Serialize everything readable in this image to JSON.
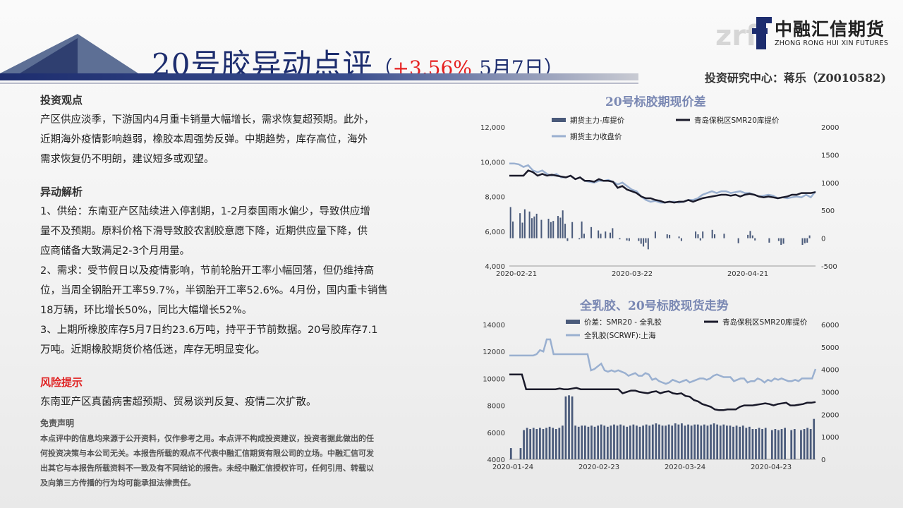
{
  "header": {
    "title": "20号胶异动点评",
    "paren_open": "（",
    "pct": "+3.56%",
    "date": "5月7日",
    "paren_close": "）",
    "author": "投资研究中心：蒋乐（Z0010582)"
  },
  "logo": {
    "cn": "中融汇信期货",
    "en": "ZHONG RONG HUI XIN FUTURES",
    "watermark": "zrf"
  },
  "colors": {
    "navy": "#1d2d6e",
    "red": "#e52020",
    "bar": "#4a5a7a",
    "line_dark": "#1a1a2a",
    "line_light": "#9ab0d0"
  },
  "view": {
    "heading": "投资观点",
    "lines": [
      "产区供应淡季，下游国内4月重卡销量大幅增长，需求恢复超预期。此外，",
      "近期海外疫情影响趋弱，橡胶本周强势反弹。中期趋势，库存高位，海外",
      "需求恢复仍不明朗，建议短多或观望。"
    ]
  },
  "analysis": {
    "heading": "异动解析",
    "lines": [
      "1、供给：东南亚产区陆续进入停割期，1-2月泰国雨水偏少，导致供应增",
      "量不及预期。原料价格下滑导致胶农割胶意愿下降，近期供应量下降，供",
      "应商储备大致满足2-3个月用量。",
      "2、需求：受节假日以及疫情影响，节前轮胎开工率小幅回落，但仍维持高",
      "位，当周全钢胎开工率59.7%，半钢胎开工率52.6%。4月份，国内重卡销售",
      "18万辆，环比增长50%，同比大幅增长52%。",
      "3、上期所橡胶库存5月7日约23.6万吨，持平于节前数据。20号胶库存7.1",
      "万吨。近期橡胶期货价格低迷，库存无明显变化。"
    ]
  },
  "risk": {
    "heading": "风险提示",
    "text": "东南亚产区真菌病害超预期、贸易谈判反复、疫情二次扩散。"
  },
  "disclaimer": {
    "heading": "免责声明",
    "lines": [
      "本点评中的信息均来源于公开资料，仅作参考之用。本点评不构成投资建议，投资者据此做出的任",
      "何投资决策与本公司无关。本报告所载的观点不代表中融汇信期货有限公司的立场。中融汇信可发",
      "出其它与本报告所载资料不一致及有不同结论的报告。未经中融汇信授权许可，任何引用、转载以",
      "及向第三方传播的行为均可能承担法律责任。"
    ]
  },
  "chart_data": [
    {
      "type": "bar+line",
      "title": "20号标胶期现价差",
      "left_ylim": [
        4000,
        12000
      ],
      "left_ticks": [
        "12,000",
        "10,000",
        "8,000",
        "6,000",
        "4,000"
      ],
      "right_ylim": [
        -500,
        2000
      ],
      "right_ticks": [
        "2000",
        "1500",
        "1000",
        "500",
        "0",
        "-500"
      ],
      "x_ticks": [
        "2020-02-21",
        "2020-03-22",
        "2020-04-21"
      ],
      "legend": [
        "期货主力-库提价",
        "青岛保税区SMR20库提价",
        "期货主力收盘价"
      ],
      "bars": [
        560,
        300,
        0,
        0,
        450,
        280,
        520,
        0,
        480,
        360,
        390,
        440,
        0,
        330,
        0,
        0,
        350,
        290,
        310,
        0,
        400,
        370,
        500,
        260,
        -50,
        0,
        290,
        0,
        0,
        -20,
        300,
        80,
        0,
        0,
        200,
        0,
        0,
        140,
        80,
        0,
        120,
        0,
        100,
        180,
        0,
        0,
        -20,
        0,
        0,
        -40,
        -50,
        0,
        0,
        0,
        -50,
        -100,
        -150,
        -80,
        -200,
        0,
        0,
        120,
        0,
        0,
        0,
        0,
        70,
        60,
        0,
        0,
        0,
        30,
        -50,
        0,
        0,
        0,
        0,
        0,
        120,
        70,
        -40,
        120,
        0,
        0,
        0,
        150,
        70,
        0,
        0,
        0,
        80,
        0,
        0,
        0,
        0,
        0,
        -90,
        0,
        0,
        0,
        60,
        130,
        50,
        -40,
        0,
        0,
        0,
        0,
        0,
        -80,
        0,
        0,
        0,
        -50,
        -120,
        -100,
        0,
        0,
        0,
        0,
        0,
        0,
        0,
        -120,
        -90,
        -80,
        50,
        0,
        0
      ],
      "series_dark": [
        9200,
        9200,
        9200,
        9200,
        9500,
        9400,
        9200,
        9300,
        9200,
        9250,
        9200,
        9150,
        9100,
        9200,
        9000,
        9100,
        8900,
        8900,
        8850,
        9000,
        8900,
        8900,
        8850,
        8500,
        8600,
        8400,
        8300,
        8200,
        8000,
        7900,
        7900,
        7800,
        7750,
        7650,
        7700,
        7650,
        7700,
        7700,
        7800,
        7700,
        7800,
        7900,
        7950,
        8000,
        8050,
        8100,
        8100,
        8050,
        8100,
        8000,
        8100,
        8150,
        8100,
        8000,
        7950,
        8000,
        7950,
        7900,
        7950,
        8000,
        8100,
        8100,
        8200,
        8200,
        8200,
        8250
      ],
      "series_light": [
        9900,
        9900,
        9850,
        9700,
        9800,
        9500,
        9400,
        9500,
        9300,
        9200,
        9300,
        9100,
        9100,
        9200,
        9000,
        9100,
        8900,
        8850,
        8800,
        8900,
        8900,
        8950,
        8850,
        8700,
        8800,
        8600,
        8400,
        8300,
        8000,
        7800,
        7700,
        7750,
        7650,
        7650,
        7700,
        7700,
        7650,
        7700,
        7800,
        7800,
        7900,
        8100,
        8200,
        8300,
        8200,
        8300,
        8300,
        8200,
        8250,
        8300,
        8200,
        8200,
        8100,
        8000,
        8050,
        8100,
        8050,
        7900,
        7950,
        7900,
        7950,
        8000,
        7950,
        8100,
        7950,
        8300
      ]
    },
    {
      "type": "bar+line",
      "title": "全乳胶、20号标胶现货走势",
      "left_ylim": [
        4000,
        14000
      ],
      "left_ticks": [
        "14000",
        "12000",
        "10000",
        "8000",
        "6000",
        "4000"
      ],
      "right_ylim": [
        0,
        6000
      ],
      "right_ticks": [
        "6000",
        "5000",
        "4000",
        "3000",
        "2000",
        "1000",
        "0"
      ],
      "x_ticks": [
        "2020-01-24",
        "2020-02-23",
        "2020-03-24",
        "2020-04-23"
      ],
      "legend": [
        "价差：SMR20 - 全乳胶",
        "青岛保税区SMR20库提价",
        "全乳胶(SCRWF):上海"
      ],
      "bars": [
        500,
        0,
        0,
        500,
        1300,
        1400,
        1350,
        1400,
        1350,
        1400,
        1350,
        1400,
        1450,
        1400,
        1350,
        1400,
        1500,
        2800,
        2850,
        2800,
        1500,
        1450,
        1500,
        1500,
        1450,
        1500,
        1450,
        1500,
        1550,
        1500,
        1450,
        1500,
        1550,
        1500,
        1550,
        1500,
        1450,
        1500,
        1550,
        1500,
        1450,
        1500,
        1550,
        1500,
        1550,
        1600,
        1550,
        1500,
        1500,
        1550,
        1500,
        1600,
        1550,
        1600,
        1500,
        1550,
        1500,
        1550,
        1550,
        1500,
        1550,
        1500,
        1550,
        1600,
        1550,
        1500,
        1550,
        1500,
        1500,
        1450,
        1500,
        1450,
        1500,
        1400,
        1450,
        1350,
        1350,
        1400,
        1350,
        1400,
        0,
        1300,
        1350,
        1300,
        1350,
        1400,
        0,
        1300,
        1350,
        0,
        1300,
        1350,
        1400,
        1350,
        1800
      ],
      "series_dark": [
        10300,
        10300,
        10300,
        10300,
        9200,
        9200,
        9200,
        9200,
        9200,
        9200,
        9200,
        9200,
        9250,
        9200,
        9200,
        9250,
        9300,
        9200,
        9200,
        9200,
        9200,
        9200,
        9200,
        9200,
        9200,
        9200,
        9200,
        8900,
        9000,
        9100,
        9100,
        9000,
        8950,
        8900,
        9000,
        9050,
        8900,
        9000,
        9050,
        8900,
        8850,
        8900,
        8700,
        8650,
        8400,
        8300,
        8100,
        8000,
        7900,
        7700,
        7650,
        7650,
        7700,
        7700,
        7700,
        7900,
        8000,
        8000,
        8000,
        8050,
        8100,
        8150,
        8100,
        8000,
        8100,
        8150,
        8200,
        8000,
        8000,
        8050,
        8100,
        8200,
        8200,
        8250
      ],
      "series_light": [
        11700,
        11700,
        11700,
        11700,
        11700,
        11700,
        11700,
        11700,
        11800,
        12100,
        12000,
        12900,
        12900,
        11800,
        11800,
        11800,
        11800,
        11800,
        11800,
        11800,
        11800,
        11800,
        11800,
        11800,
        10600,
        10700,
        10900,
        11100,
        10600,
        10500,
        10600,
        10500,
        10600,
        10500,
        10400,
        10200,
        10300,
        10400,
        10200,
        10200,
        10400,
        10300,
        9900,
        10000,
        9800,
        9700,
        9600,
        9700,
        9900,
        9800,
        9700,
        9800,
        9900,
        9700,
        9800,
        9900,
        10000,
        10000,
        9900,
        10000,
        10200,
        10300,
        10200,
        10100,
        10100,
        10100,
        9800,
        9900,
        10000,
        10000,
        9700,
        9800,
        9800,
        10000,
        9900,
        9700,
        9900,
        9800,
        10000,
        9900,
        10000,
        9900,
        9800,
        9800,
        9900,
        9800,
        10000,
        10000,
        10000,
        10000,
        10700
      ]
    }
  ]
}
